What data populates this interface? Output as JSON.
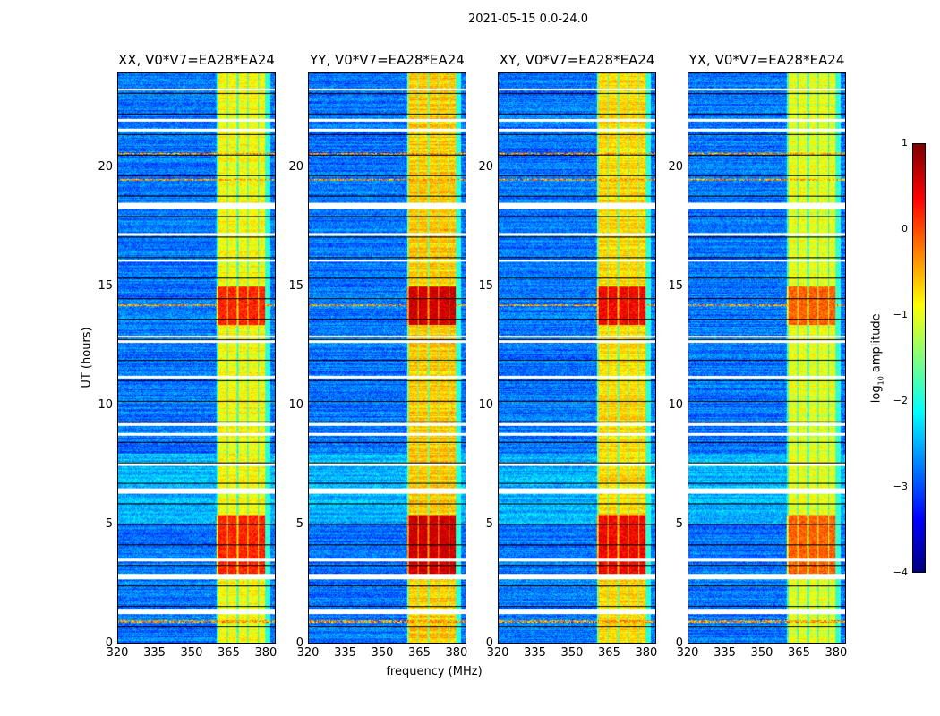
{
  "chart_data": {
    "type": "heatmap",
    "title": "2021-05-15 0.0-24.0",
    "xlabel": "frequency (MHz)",
    "ylabel": "UT (hours)",
    "xlim": [
      320,
      384
    ],
    "ylim": [
      0,
      24
    ],
    "xticks": [
      "320",
      "335",
      "350",
      "365",
      "380"
    ],
    "xtick_values": [
      320,
      335,
      350,
      365,
      380
    ],
    "yticks": [
      "0",
      "5",
      "10",
      "15",
      "20"
    ],
    "ytick_values": [
      0,
      5,
      10,
      15,
      20
    ],
    "panels": [
      {
        "title": "XX, V0*V7=EA28*EA24",
        "band_level": -0.9,
        "peak_level": 0.2
      },
      {
        "title": "YY, V0*V7=EA28*EA24",
        "band_level": -0.6,
        "peak_level": 0.6
      },
      {
        "title": "XY, V0*V7=EA28*EA24",
        "band_level": -0.7,
        "peak_level": 0.4
      },
      {
        "title": "YX, V0*V7=EA28*EA24",
        "band_level": -1.0,
        "peak_level": -0.1
      }
    ],
    "band_mhz": [
      360,
      380
    ],
    "background_level": -2.8,
    "peak_times_hours": [
      [
        13.4,
        15.0
      ],
      [
        2.9,
        5.4
      ]
    ],
    "rfi_line_hours": [
      14.2,
      20.6,
      19.5,
      0.9
    ],
    "flagged_rows_hours": [
      23.3,
      22.0,
      21.6,
      18.4,
      17.2,
      16.1,
      12.7,
      12.9,
      11.2,
      9.2,
      8.8,
      7.5,
      6.4,
      3.5,
      2.8,
      1.3
    ],
    "colorbar": {
      "label": "log10 amplitude",
      "label_main": "log",
      "label_sub": "10",
      "label_rest": " amplitude",
      "range": [
        -4,
        1
      ],
      "ticks": [
        "1",
        "0",
        "−1",
        "−2",
        "−3",
        "−4"
      ],
      "tick_values": [
        1,
        0,
        -1,
        -2,
        -3,
        -4
      ],
      "colormap": "jet"
    }
  }
}
